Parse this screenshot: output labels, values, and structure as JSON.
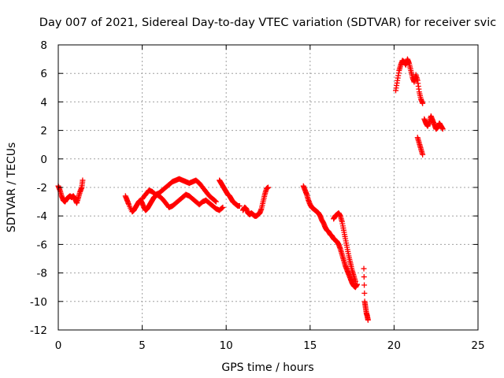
{
  "chart_data": {
    "type": "scatter",
    "title": "Day 007 of 2021, Sidereal Day-to-day VTEC variation (SDTVAR) for receiver svic",
    "xlabel": "GPS time / hours",
    "ylabel": "SDTVAR / TECUs",
    "xlim": [
      0,
      25
    ],
    "ylim": [
      -12,
      8
    ],
    "xticks": [
      0,
      5,
      10,
      15,
      20,
      25
    ],
    "yticks": [
      -12,
      -10,
      -8,
      -6,
      -4,
      -2,
      0,
      2,
      4,
      6,
      8
    ],
    "grid": true,
    "marker": "+",
    "color": "#ff0000",
    "series": [
      {
        "x": [
          0.0,
          0.1,
          0.2,
          0.3,
          0.4,
          0.5,
          0.6,
          0.7,
          0.8,
          0.9,
          1.0,
          1.1,
          1.2,
          1.3,
          1.4,
          1.45
        ],
        "y": [
          -1.9,
          -2.2,
          -2.6,
          -2.9,
          -3.0,
          -2.8,
          -2.7,
          -2.6,
          -2.7,
          -2.6,
          -2.8,
          -3.1,
          -2.7,
          -2.3,
          -2.0,
          -1.5
        ]
      },
      {
        "x": [
          4.0,
          4.1,
          4.2,
          4.4,
          4.5,
          4.6,
          4.7,
          4.8,
          4.9,
          5.0,
          5.1,
          5.2,
          5.3,
          5.4,
          5.5,
          5.6,
          5.7,
          5.8,
          5.9,
          6.0,
          6.2,
          6.4,
          6.6,
          6.8,
          7.0,
          7.2,
          7.4,
          7.6,
          7.8,
          8.0,
          8.2,
          8.4,
          8.6,
          8.8,
          9.0,
          9.2,
          9.4,
          9.6,
          9.8
        ],
        "y": [
          -2.6,
          -2.9,
          -3.2,
          -3.7,
          -3.6,
          -3.4,
          -3.2,
          -3.0,
          -2.9,
          -3.1,
          -3.4,
          -3.6,
          -3.5,
          -3.3,
          -3.1,
          -2.9,
          -2.7,
          -2.6,
          -2.5,
          -2.6,
          -2.8,
          -3.1,
          -3.4,
          -3.3,
          -3.1,
          -2.9,
          -2.7,
          -2.5,
          -2.6,
          -2.8,
          -3.0,
          -3.2,
          -3.0,
          -2.9,
          -3.1,
          -3.3,
          -3.5,
          -3.6,
          -3.4
        ]
      },
      {
        "x": [
          5.0,
          5.2,
          5.4,
          5.6,
          5.8,
          6.0,
          6.2,
          6.4,
          6.6,
          6.8,
          7.0,
          7.2,
          7.4,
          7.6,
          7.8,
          8.0,
          8.2,
          8.4,
          8.6,
          8.8,
          9.0,
          9.2,
          9.4
        ],
        "y": [
          -2.8,
          -2.5,
          -2.2,
          -2.3,
          -2.5,
          -2.4,
          -2.2,
          -2.0,
          -1.8,
          -1.6,
          -1.5,
          -1.4,
          -1.5,
          -1.6,
          -1.7,
          -1.6,
          -1.5,
          -1.7,
          -2.0,
          -2.3,
          -2.6,
          -2.8,
          -3.0
        ]
      },
      {
        "x": [
          9.6,
          9.7,
          9.8,
          9.9,
          10.0,
          10.1,
          10.2,
          10.3,
          10.4,
          10.5,
          10.6,
          10.7,
          10.8
        ],
        "y": [
          -1.5,
          -1.7,
          -1.9,
          -2.1,
          -2.3,
          -2.5,
          -2.6,
          -2.8,
          -3.0,
          -3.1,
          -3.2,
          -3.3,
          -3.3
        ]
      },
      {
        "x": [
          11.0,
          11.1,
          11.2,
          11.3,
          11.4,
          11.5,
          11.6,
          11.7,
          11.8,
          11.9,
          12.0,
          12.1,
          12.2,
          12.3,
          12.4,
          12.5
        ],
        "y": [
          -3.6,
          -3.4,
          -3.5,
          -3.8,
          -3.9,
          -3.8,
          -3.9,
          -4.0,
          -4.0,
          -3.9,
          -3.8,
          -3.5,
          -3.0,
          -2.5,
          -2.1,
          -2.0
        ]
      },
      {
        "x": [
          14.6,
          14.7,
          14.8,
          14.9,
          15.0,
          15.1,
          15.2,
          15.3,
          15.4,
          15.5,
          15.6,
          15.7,
          15.8,
          15.9,
          16.0,
          16.1,
          16.2,
          16.3,
          16.4,
          16.5,
          16.6,
          16.7,
          16.8,
          16.9,
          17.0,
          17.1,
          17.2,
          17.3,
          17.4,
          17.5,
          17.6,
          17.7,
          17.8
        ],
        "y": [
          -1.9,
          -2.2,
          -2.5,
          -2.9,
          -3.2,
          -3.4,
          -3.5,
          -3.6,
          -3.7,
          -3.8,
          -4.0,
          -4.3,
          -4.5,
          -4.8,
          -5.0,
          -5.1,
          -5.3,
          -5.4,
          -5.6,
          -5.7,
          -5.8,
          -6.0,
          -6.3,
          -6.7,
          -7.1,
          -7.5,
          -7.8,
          -8.1,
          -8.4,
          -8.7,
          -8.9,
          -9.0,
          -8.8
        ]
      },
      {
        "x": [
          16.4,
          16.5,
          16.6,
          16.7,
          16.8,
          16.9,
          17.0,
          17.1,
          17.2,
          17.3,
          17.4,
          17.5,
          17.6,
          17.7
        ],
        "y": [
          -4.2,
          -4.0,
          -3.9,
          -3.8,
          -4.0,
          -4.4,
          -5.0,
          -5.6,
          -6.2,
          -6.8,
          -7.3,
          -7.8,
          -8.2,
          -8.6
        ]
      },
      {
        "x": [
          18.2,
          18.25,
          18.3,
          18.35,
          18.4,
          18.45
        ],
        "y": [
          -7.7,
          -10.0,
          -10.4,
          -10.8,
          -11.0,
          -11.3
        ]
      },
      {
        "x": [
          20.1,
          20.2,
          20.3,
          20.4,
          20.5,
          20.6,
          20.7,
          20.8,
          20.9,
          21.0,
          21.1,
          21.2,
          21.3,
          21.4,
          21.5,
          21.6,
          21.7
        ],
        "y": [
          4.8,
          5.5,
          6.2,
          6.6,
          6.9,
          6.8,
          6.6,
          7.0,
          6.7,
          6.2,
          5.7,
          5.4,
          5.9,
          5.5,
          4.7,
          4.2,
          3.9
        ]
      },
      {
        "x": [
          21.4,
          21.5,
          21.6,
          21.7
        ],
        "y": [
          1.5,
          1.1,
          0.7,
          0.3
        ]
      },
      {
        "x": [
          21.8,
          21.9,
          22.0,
          22.1,
          22.2,
          22.3,
          22.4,
          22.5,
          22.6,
          22.7,
          22.8,
          22.9
        ],
        "y": [
          2.8,
          2.5,
          2.3,
          2.6,
          3.0,
          2.7,
          2.4,
          2.1,
          2.2,
          2.5,
          2.3,
          2.1
        ]
      }
    ]
  }
}
